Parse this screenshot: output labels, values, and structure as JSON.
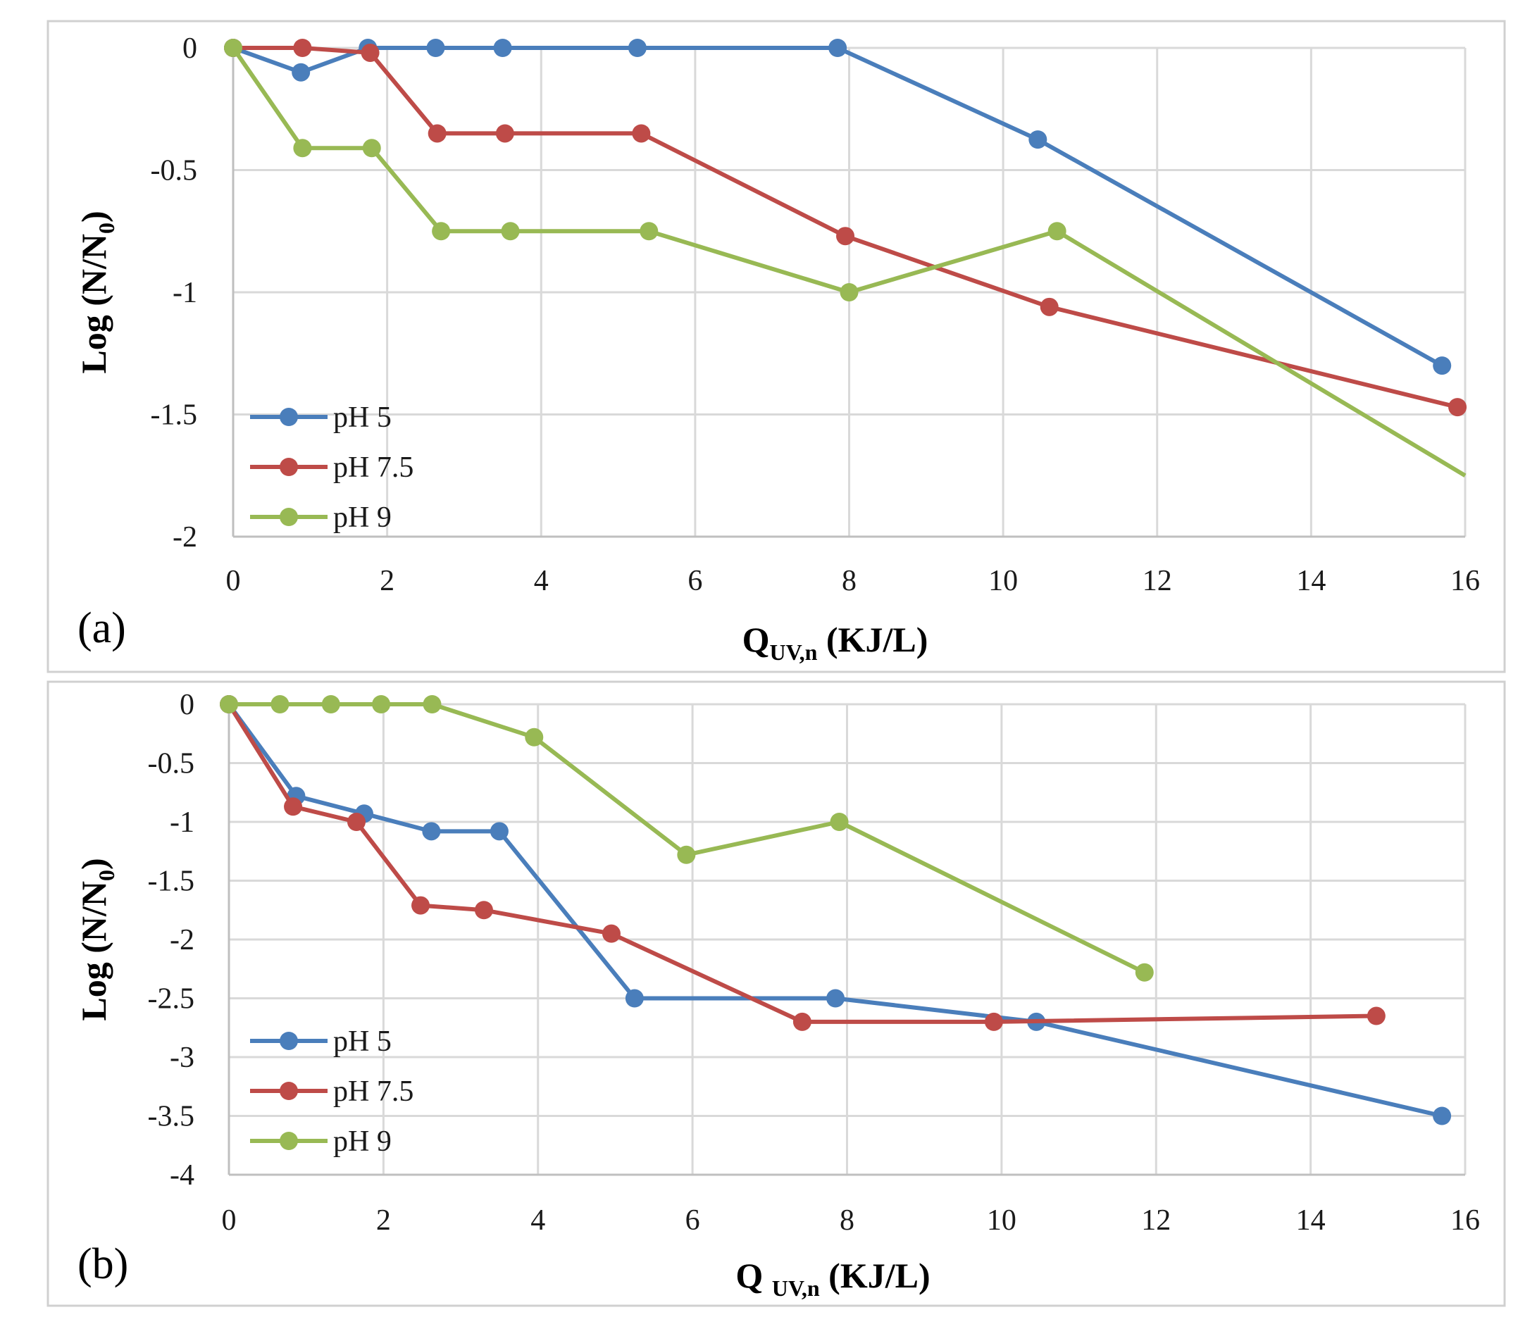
{
  "colors": {
    "pH 5": "#4a7ebb",
    "pH 7.5": "#be4b48",
    "pH 9": "#98b954"
  },
  "chart_data": [
    {
      "type": "line",
      "panel_label": "(a)",
      "xlabel": {
        "main": "Q",
        "sub": "UV,n",
        "unit": " (KJ/L)"
      },
      "ylabel": {
        "main": "Log (N/N",
        "sub": "0",
        "tail": ")"
      },
      "xlim": [
        0,
        16
      ],
      "ylim": [
        -2,
        0
      ],
      "xticks": [
        0,
        2,
        4,
        6,
        8,
        10,
        12,
        14,
        16
      ],
      "yticks": [
        0,
        -0.5,
        -1,
        -1.5,
        -2
      ],
      "legend_position": "bottom-left",
      "series": [
        {
          "name": "pH 5",
          "x": [
            0,
            0.88,
            1.75,
            2.63,
            3.5,
            5.25,
            7.85,
            10.45,
            15.7
          ],
          "y": [
            0,
            -0.1,
            0,
            0,
            0,
            0,
            0,
            -0.375,
            -1.3
          ]
        },
        {
          "name": "pH 7.5",
          "x": [
            0,
            0.9,
            1.78,
            2.65,
            3.53,
            5.3,
            7.95,
            10.6,
            15.9
          ],
          "y": [
            0,
            0,
            -0.02,
            -0.35,
            -0.35,
            -0.35,
            -0.77,
            -1.06,
            -1.47
          ]
        },
        {
          "name": "pH 9",
          "x": [
            0,
            0.9,
            1.8,
            2.7,
            3.6,
            5.4,
            8.0,
            10.7,
            16.0
          ],
          "y": [
            0,
            -0.41,
            -0.41,
            -0.75,
            -0.75,
            -0.75,
            -1.0,
            -0.75,
            -1.75
          ],
          "last_marker": false
        }
      ]
    },
    {
      "type": "line",
      "panel_label": "(b)",
      "xlabel": {
        "main": "Q ",
        "sub": "UV,n",
        "unit": " (KJ/L)"
      },
      "ylabel": {
        "main": "Log (N/N",
        "sub": "0",
        "tail": ")"
      },
      "xlim": [
        0,
        16
      ],
      "ylim": [
        -4,
        0
      ],
      "xticks": [
        0,
        2,
        4,
        6,
        8,
        10,
        12,
        14,
        16
      ],
      "yticks": [
        0,
        -0.5,
        -1,
        -1.5,
        -2,
        -2.5,
        -3,
        -3.5,
        -4
      ],
      "legend_position": "bottom-left",
      "series": [
        {
          "name": "pH 5",
          "x": [
            0,
            0.87,
            1.75,
            2.62,
            3.5,
            5.25,
            7.85,
            10.45,
            15.7
          ],
          "y": [
            0,
            -0.78,
            -0.93,
            -1.08,
            -1.08,
            -2.5,
            -2.5,
            -2.7,
            -3.5
          ]
        },
        {
          "name": "pH 7.5",
          "x": [
            0,
            0.83,
            1.65,
            2.48,
            3.3,
            4.95,
            7.42,
            9.9,
            14.85
          ],
          "y": [
            0,
            -0.87,
            -1.0,
            -1.71,
            -1.75,
            -1.95,
            -2.7,
            -2.7,
            -2.65
          ]
        },
        {
          "name": "pH 9",
          "x": [
            0,
            0.66,
            1.32,
            1.97,
            2.63,
            3.95,
            5.92,
            7.9,
            11.85
          ],
          "y": [
            0,
            0,
            0,
            0,
            0,
            -0.28,
            -1.28,
            -1.0,
            -2.28
          ]
        }
      ]
    }
  ]
}
